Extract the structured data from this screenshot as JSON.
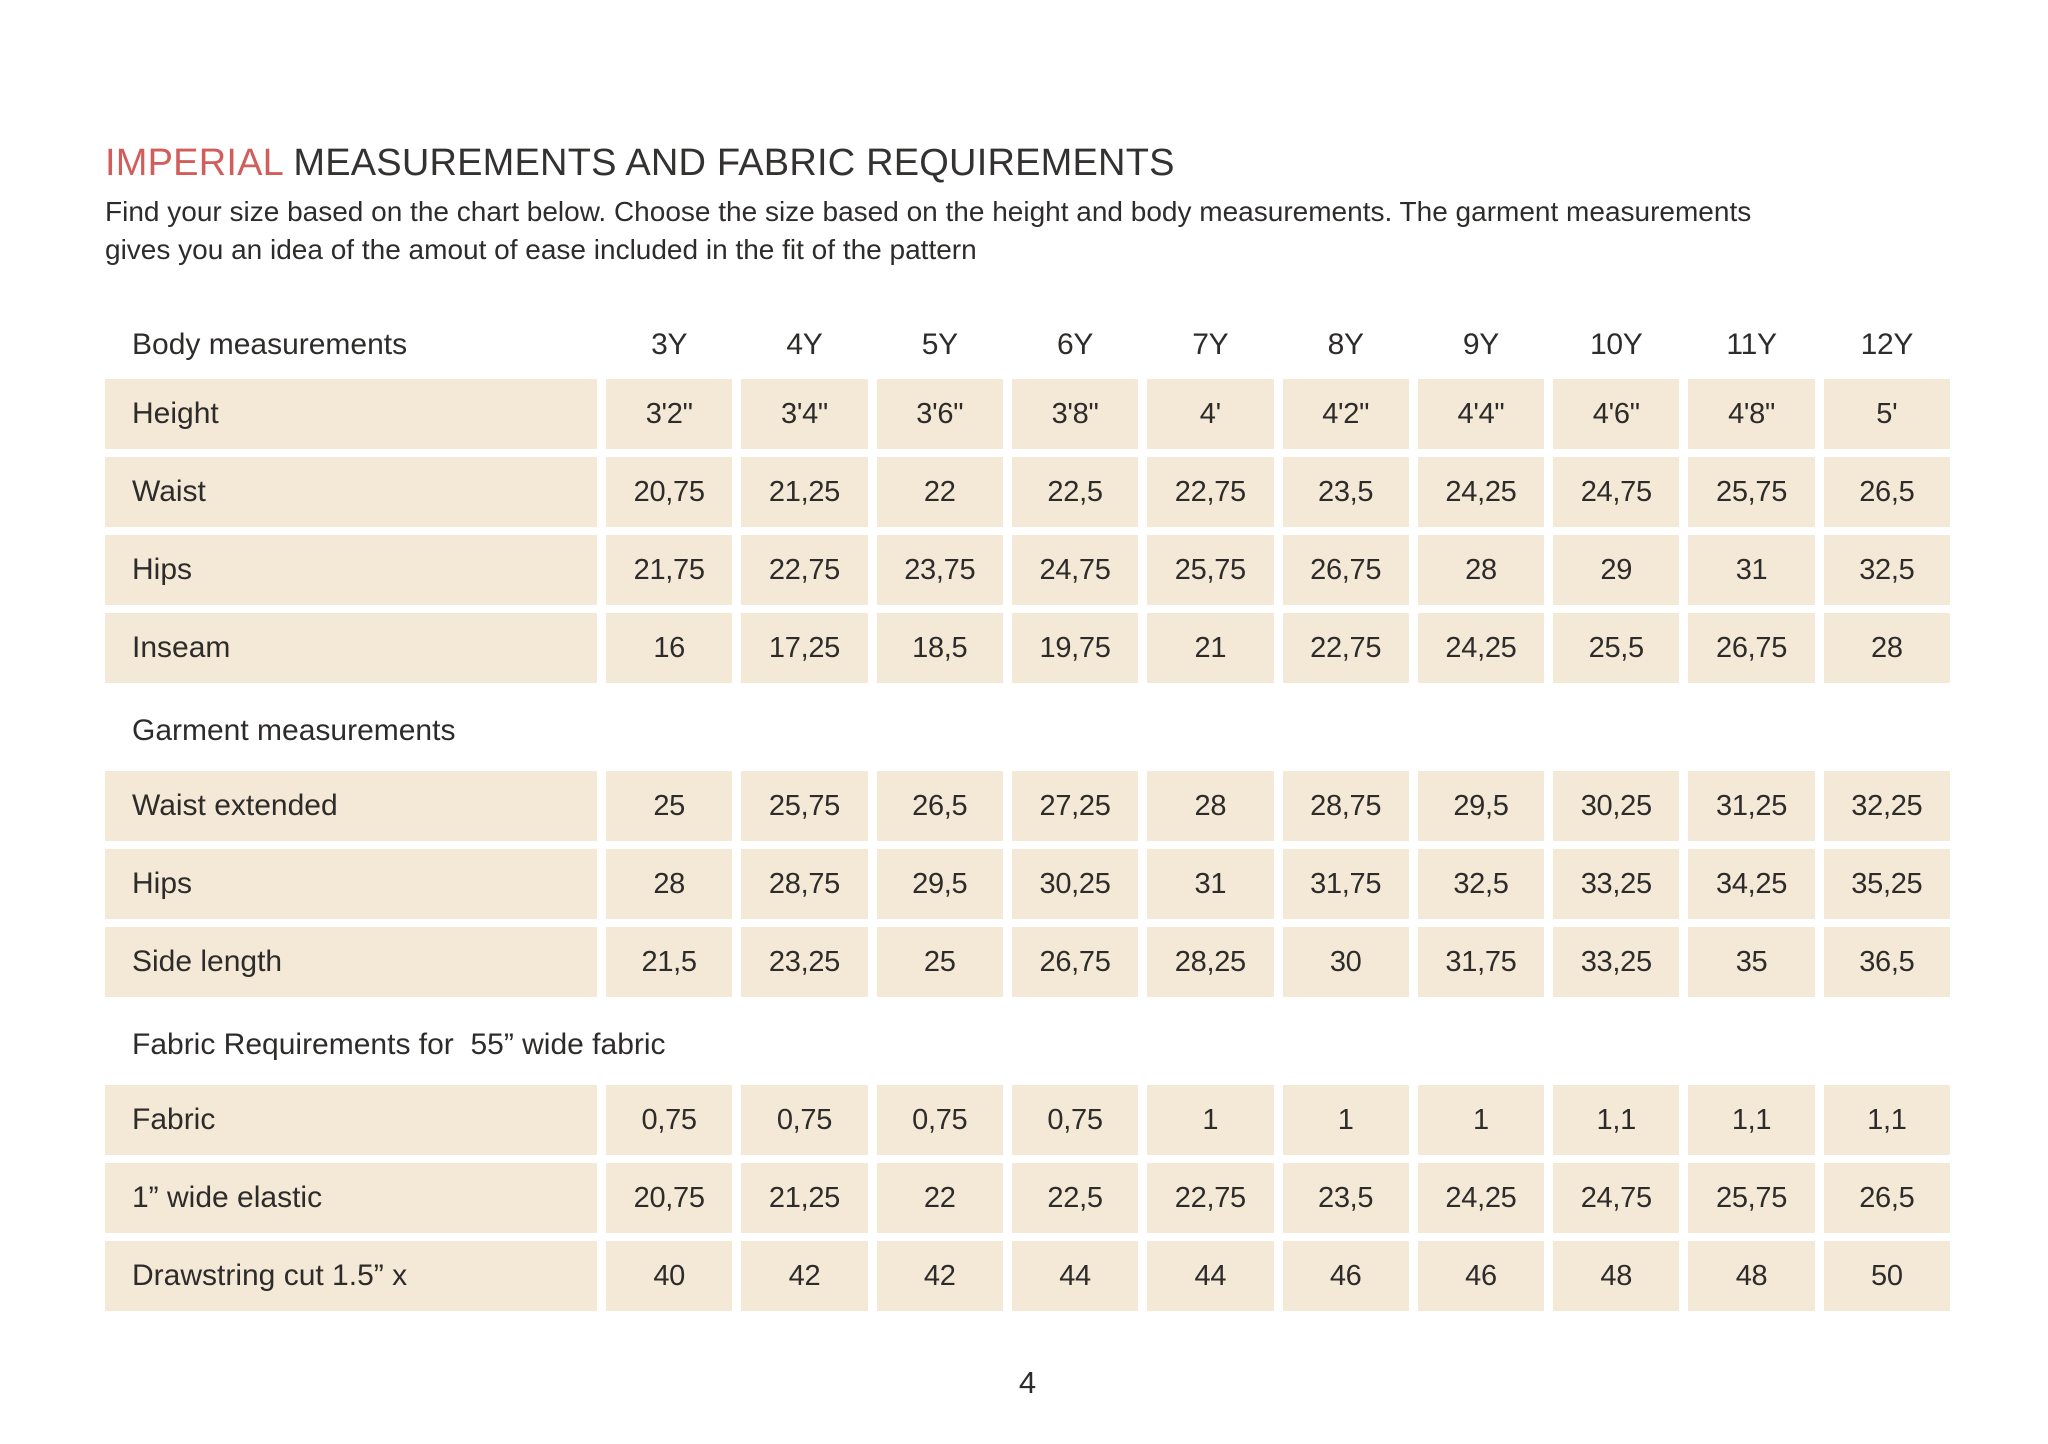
{
  "header": {
    "title_highlight": "IMPERIAL",
    "title_rest": " MEASUREMENTS AND FABRIC REQUIREMENTS",
    "subtitle_line1": "Find your size based on the chart below. Choose the size based on the height and body measurements. The garment measurements",
    "subtitle_line2": "gives you an idea of the amout of ease included in the fit of the pattern"
  },
  "colors": {
    "accent_red": "#d25e5c",
    "cell_beige": "#f4e8d6",
    "text_dark": "#2e2c2b"
  },
  "table": {
    "sizes": [
      "3Y",
      "4Y",
      "5Y",
      "6Y",
      "7Y",
      "8Y",
      "9Y",
      "10Y",
      "11Y",
      "12Y"
    ],
    "sections": [
      {
        "heading": "Body measurements",
        "heading_with_sizes": true,
        "rows": [
          {
            "label": "Height",
            "values": [
              "3'2\"",
              "3'4\"",
              "3'6\"",
              "3'8\"",
              "4'",
              "4'2\"",
              "4'4\"",
              "4'6\"",
              "4'8\"",
              "5'"
            ]
          },
          {
            "label": "Waist",
            "values": [
              "20,75",
              "21,25",
              "22",
              "22,5",
              "22,75",
              "23,5",
              "24,25",
              "24,75",
              "25,75",
              "26,5"
            ]
          },
          {
            "label": "Hips",
            "values": [
              "21,75",
              "22,75",
              "23,75",
              "24,75",
              "25,75",
              "26,75",
              "28",
              "29",
              "31",
              "32,5"
            ]
          },
          {
            "label": "Inseam",
            "values": [
              "16",
              "17,25",
              "18,5",
              "19,75",
              "21",
              "22,75",
              "24,25",
              "25,5",
              "26,75",
              "28"
            ]
          }
        ]
      },
      {
        "heading": "Garment measurements",
        "heading_with_sizes": false,
        "rows": [
          {
            "label": "Waist extended",
            "values": [
              "25",
              "25,75",
              "26,5",
              "27,25",
              "28",
              "28,75",
              "29,5",
              "30,25",
              "31,25",
              "32,25"
            ]
          },
          {
            "label": "Hips",
            "values": [
              "28",
              "28,75",
              "29,5",
              "30,25",
              "31",
              "31,75",
              "32,5",
              "33,25",
              "34,25",
              "35,25"
            ]
          },
          {
            "label": "Side length",
            "values": [
              "21,5",
              "23,25",
              "25",
              "26,75",
              "28,25",
              "30",
              "31,75",
              "33,25",
              "35",
              "36,5"
            ]
          }
        ]
      },
      {
        "heading": "Fabric Requirements for  55” wide fabric",
        "heading_with_sizes": false,
        "rows": [
          {
            "label": "Fabric",
            "values": [
              "0,75",
              "0,75",
              "0,75",
              "0,75",
              "1",
              "1",
              "1",
              "1,1",
              "1,1",
              "1,1"
            ]
          },
          {
            "label": "1” wide elastic",
            "values": [
              "20,75",
              "21,25",
              "22",
              "22,5",
              "22,75",
              "23,5",
              "24,25",
              "24,75",
              "25,75",
              "26,5"
            ]
          },
          {
            "label": "Drawstring cut 1.5” x",
            "values": [
              "40",
              "42",
              "42",
              "44",
              "44",
              "46",
              "46",
              "48",
              "48",
              "50"
            ]
          }
        ]
      }
    ]
  },
  "footer": {
    "page_number": "4"
  }
}
